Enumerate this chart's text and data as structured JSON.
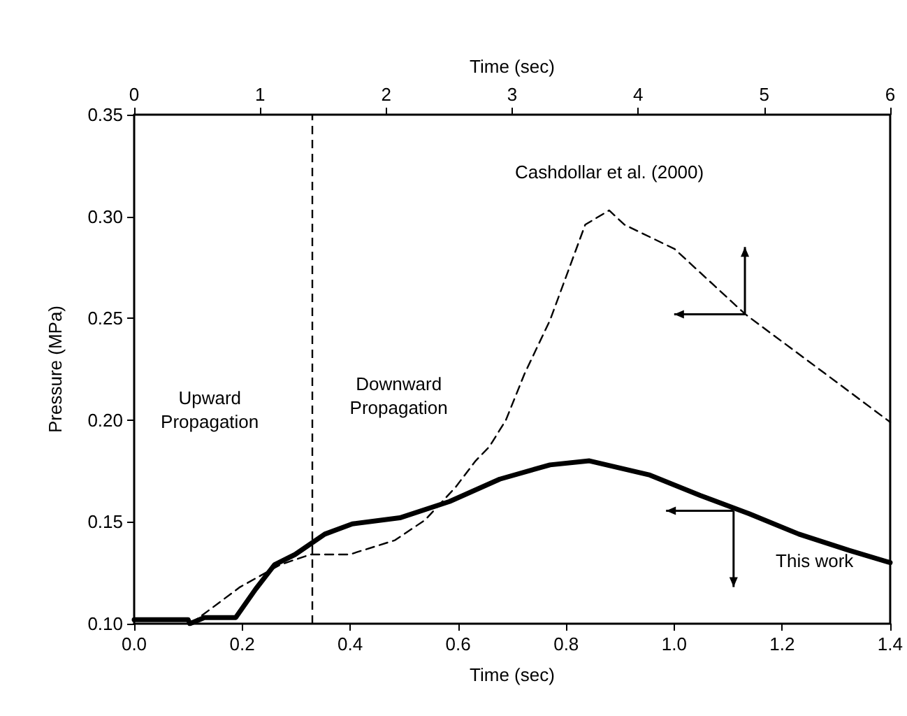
{
  "chart_data": {
    "type": "line",
    "xlabel": "Time (sec)",
    "x2label": "Time (sec)",
    "ylabel": "Pressure (MPa)",
    "xlim": [
      0,
      1.4
    ],
    "xticks": [
      {
        "value": 0,
        "label": "0.0"
      },
      {
        "value": 0.2,
        "label": "0.2"
      },
      {
        "value": 0.4,
        "label": "0.4"
      },
      {
        "value": 0.6,
        "label": "0.6"
      },
      {
        "value": 0.8,
        "label": "0.8"
      },
      {
        "value": 1,
        "label": "1.0"
      },
      {
        "value": 1.2,
        "label": "1.2"
      },
      {
        "value": 1.4,
        "label": "1.4"
      }
    ],
    "x2lim": [
      0,
      6
    ],
    "x2ticks": [
      0,
      1,
      2,
      3,
      4,
      5,
      6
    ],
    "ylim": [
      0.1,
      0.35
    ],
    "yticks": [
      {
        "value": 0.1,
        "label": "0.10"
      },
      {
        "value": 0.15,
        "label": "0.15"
      },
      {
        "value": 0.2,
        "label": "0.20"
      },
      {
        "value": 0.25,
        "label": "0.25"
      },
      {
        "value": 0.3,
        "label": "0.30"
      },
      {
        "value": 0.35,
        "label": "0.35"
      }
    ],
    "grid": false,
    "legend": false,
    "marker": "none",
    "series": [
      {
        "name": "This work",
        "color": "#000000",
        "line_style": "solid",
        "x": [
          0,
          0.1,
          0.103,
          0.13,
          0.188,
          0.225,
          0.26,
          0.298,
          0.353,
          0.404,
          0.492,
          0.584,
          0.677,
          0.77,
          0.843,
          0.955,
          1.048,
          1.139,
          1.231,
          1.324,
          1.4
        ],
        "values": [
          0.102,
          0.102,
          0.1,
          0.103,
          0.103,
          0.117,
          0.129,
          0.134,
          0.144,
          0.149,
          0.152,
          0.16,
          0.171,
          0.178,
          0.18,
          0.173,
          0.163,
          0.154,
          0.144,
          0.136,
          0.13
        ]
      },
      {
        "name": "Cashdollar et al. (2000)",
        "color": "#000000",
        "line_style": "dashed",
        "axis": "x2",
        "x": [
          0.45,
          0.84,
          1.16,
          1.4,
          1.71,
          2.07,
          2.31,
          2.55,
          2.71,
          2.82,
          2.95,
          3.1,
          3.3,
          3.58,
          3.77,
          3.89,
          4.29,
          4.85,
          5.48,
          6.0
        ],
        "values": [
          0.1,
          0.118,
          0.129,
          0.134,
          0.134,
          0.141,
          0.151,
          0.167,
          0.18,
          0.187,
          0.2,
          0.223,
          0.249,
          0.296,
          0.303,
          0.296,
          0.284,
          0.252,
          0.223,
          0.199
        ]
      }
    ],
    "ref_lines": [
      {
        "axis": "x",
        "value": 0.325,
        "label": null,
        "line_style": "dashed",
        "color": "#000000"
      }
    ],
    "annotations": [
      "Upward\nPropagation",
      "Downward\nPropagation"
    ]
  }
}
